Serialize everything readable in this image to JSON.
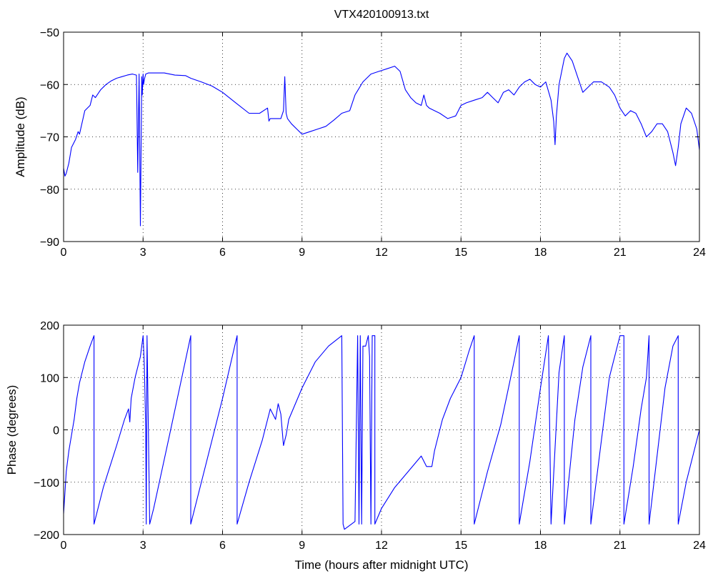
{
  "chart_data": [
    {
      "type": "line",
      "title": "VTX420100913.txt",
      "xlabel": "",
      "ylabel": "Amplitude (dB)",
      "xlim": [
        0,
        24
      ],
      "ylim": [
        -90,
        -50
      ],
      "xticks": [
        0,
        3,
        6,
        9,
        12,
        15,
        18,
        21,
        24
      ],
      "yticks": [
        -90,
        -80,
        -70,
        -60,
        -50
      ],
      "grid": true,
      "line_color": "#0000ff",
      "series": [
        {
          "x": [
            0,
            0.05,
            0.1,
            0.2,
            0.3,
            0.45,
            0.55,
            0.6,
            0.8,
            1.0,
            1.1,
            1.2,
            1.4,
            1.6,
            1.8,
            2.0,
            2.2,
            2.4,
            2.6,
            2.75,
            2.8,
            2.85,
            2.9,
            2.95,
            2.97,
            3.0,
            3.02,
            3.05,
            3.1,
            3.2,
            3.4,
            3.8,
            4.2,
            4.6,
            4.8,
            5.2,
            5.6,
            6.0,
            6.5,
            7.0,
            7.4,
            7.7,
            7.75,
            7.8,
            8.0,
            8.2,
            8.3,
            8.35,
            8.4,
            8.45,
            8.6,
            8.8,
            9.0,
            9.3,
            9.6,
            9.9,
            10.2,
            10.5,
            10.8,
            11.0,
            11.3,
            11.6,
            11.9,
            12.2,
            12.5,
            12.7,
            12.9,
            13.1,
            13.3,
            13.5,
            13.6,
            13.7,
            13.8,
            14.0,
            14.2,
            14.5,
            14.8,
            15.0,
            15.2,
            15.5,
            15.8,
            16.0,
            16.2,
            16.4,
            16.6,
            16.8,
            17.0,
            17.2,
            17.4,
            17.6,
            17.8,
            18.0,
            18.2,
            18.4,
            18.5,
            18.55,
            18.6,
            18.7,
            18.9,
            19.0,
            19.2,
            19.4,
            19.6,
            19.8,
            20.0,
            20.3,
            20.6,
            20.8,
            21.0,
            21.2,
            21.4,
            21.6,
            21.8,
            22.0,
            22.2,
            22.4,
            22.6,
            22.8,
            23.0,
            23.1,
            23.2,
            23.3,
            23.5,
            23.7,
            23.9,
            24.0
          ],
          "y": [
            -76,
            -77.5,
            -77,
            -75,
            -72,
            -70.5,
            -69,
            -69.5,
            -65,
            -64,
            -62,
            -62.5,
            -61,
            -60,
            -59.3,
            -58.8,
            -58.5,
            -58.2,
            -58,
            -58.2,
            -76.8,
            -58,
            -87,
            -58.5,
            -62,
            -58,
            -60,
            -59,
            -58,
            -57.8,
            -57.8,
            -57.8,
            -58.2,
            -58.3,
            -58.8,
            -59.5,
            -60.3,
            -61.5,
            -63.5,
            -65.5,
            -65.5,
            -64.5,
            -67,
            -66.5,
            -66.5,
            -66.5,
            -65,
            -58.5,
            -65.5,
            -66.5,
            -67.5,
            -68.5,
            -69.5,
            -69,
            -68.5,
            -68,
            -66.8,
            -65.5,
            -65,
            -62,
            -59.5,
            -58,
            -57.5,
            -57,
            -56.5,
            -57.5,
            -61,
            -62.5,
            -63.5,
            -64,
            -62,
            -64,
            -64.5,
            -65,
            -65.5,
            -66.5,
            -66,
            -64,
            -63.5,
            -63,
            -62.5,
            -61.5,
            -62.5,
            -63.5,
            -61.5,
            -61,
            -62,
            -60.5,
            -59.5,
            -59,
            -60,
            -60.5,
            -59.5,
            -63,
            -67,
            -71.5,
            -66,
            -60,
            -55,
            -54,
            -55.5,
            -58.5,
            -61.5,
            -60.5,
            -59.5,
            -59.5,
            -60.5,
            -62,
            -64.5,
            -66,
            -65,
            -65.5,
            -67.5,
            -70,
            -69,
            -67.5,
            -67.5,
            -69,
            -73,
            -75.5,
            -72,
            -67.5,
            -64.5,
            -65.5,
            -68.5,
            -72.5
          ]
        }
      ]
    },
    {
      "type": "line",
      "title": "",
      "xlabel": "Time (hours after midnight UTC)",
      "ylabel": "Phase (degrees)",
      "xlim": [
        0,
        24
      ],
      "ylim": [
        -200,
        200
      ],
      "xticks": [
        0,
        3,
        6,
        9,
        12,
        15,
        18,
        21,
        24
      ],
      "yticks": [
        -200,
        -100,
        0,
        100,
        200
      ],
      "grid": true,
      "line_color": "#0000ff",
      "series": [
        {
          "x": [
            0,
            0.05,
            0.1,
            0.2,
            0.3,
            0.4,
            0.5,
            0.6,
            0.8,
            1.0,
            1.15,
            1.15,
            1.5,
            2.0,
            2.3,
            2.45,
            2.5,
            2.55,
            2.7,
            2.9,
            3.0,
            3.05,
            3.1,
            3.12,
            3.15,
            3.2,
            3.25,
            3.3,
            3.4,
            4.0,
            4.8,
            4.8,
            5.5,
            6.0,
            6.55,
            6.55,
            7.0,
            7.5,
            7.8,
            8.0,
            8.1,
            8.2,
            8.3,
            8.4,
            8.5,
            9.0,
            9.5,
            10.0,
            10.5,
            10.55,
            10.6,
            11.0,
            11.1,
            11.15,
            11.2,
            11.25,
            11.3,
            11.4,
            11.45,
            11.5,
            11.55,
            11.6,
            11.65,
            11.7,
            11.75,
            11.75,
            12.0,
            12.5,
            13.0,
            13.5,
            13.7,
            13.8,
            13.9,
            14.0,
            14.3,
            14.6,
            15.0,
            15.3,
            15.5,
            15.5,
            16.0,
            16.5,
            17.0,
            17.2,
            17.2,
            17.6,
            18.0,
            18.3,
            18.4,
            18.4,
            18.7,
            18.9,
            18.9,
            19.3,
            19.6,
            19.9,
            19.9,
            20.3,
            20.6,
            21.0,
            21.15,
            21.15,
            21.5,
            21.8,
            22.0,
            22.1,
            22.1,
            22.4,
            22.7,
            23.0,
            23.2,
            23.2,
            23.5,
            24.0
          ],
          "y": [
            -160,
            -120,
            -80,
            -40,
            -10,
            20,
            60,
            90,
            130,
            160,
            180,
            -180,
            -110,
            -30,
            20,
            40,
            15,
            60,
            100,
            140,
            180,
            120,
            0,
            -180,
            180,
            0,
            -180,
            -170,
            -150,
            -10,
            180,
            -180,
            -40,
            60,
            180,
            -180,
            -100,
            -20,
            40,
            20,
            50,
            30,
            -30,
            -10,
            20,
            80,
            130,
            160,
            180,
            -180,
            -190,
            -175,
            180,
            -180,
            180,
            -180,
            160,
            160,
            170,
            180,
            140,
            -180,
            180,
            180,
            180,
            -180,
            -150,
            -110,
            -80,
            -50,
            -70,
            -70,
            -70,
            -40,
            20,
            60,
            100,
            150,
            180,
            -180,
            -80,
            10,
            130,
            180,
            -180,
            -60,
            80,
            180,
            -180,
            -180,
            110,
            180,
            -180,
            20,
            120,
            180,
            -180,
            -20,
            100,
            180,
            180,
            -180,
            -70,
            40,
            100,
            180,
            -180,
            -50,
            80,
            160,
            180,
            -180,
            -100,
            0
          ]
        }
      ]
    }
  ]
}
